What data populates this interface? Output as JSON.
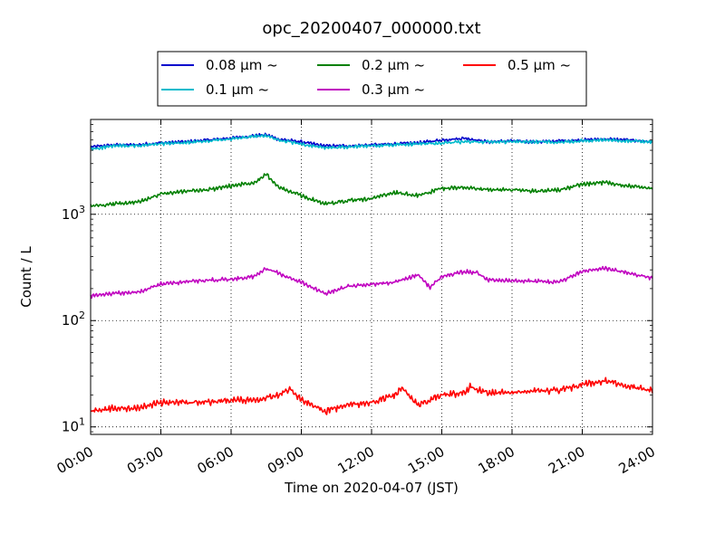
{
  "chart_data": {
    "type": "line",
    "title": "opc_20200407_000000.txt",
    "xlabel": "Time on 2020-04-07 (JST)",
    "ylabel": "Count / L",
    "x_ticks": [
      "00:00",
      "03:00",
      "06:00",
      "09:00",
      "12:00",
      "15:00",
      "18:00",
      "21:00",
      "24:00"
    ],
    "x_unit": "hours",
    "xlim": [
      0,
      24
    ],
    "yscale": "log",
    "ylim": [
      8.5,
      7800
    ],
    "y_ticks": [
      {
        "value": 10,
        "base": "10",
        "exp": "1"
      },
      {
        "value": 100,
        "base": "10",
        "exp": "2"
      },
      {
        "value": 1000,
        "base": "10",
        "exp": "3"
      }
    ],
    "grid": true,
    "legend_position": "top",
    "series": [
      {
        "name": "0.08 μm ~",
        "color": "#0000cc",
        "x": [
          0,
          1,
          2,
          3,
          4,
          5,
          6,
          7,
          7.5,
          8,
          9,
          10,
          11,
          12,
          13,
          14,
          15,
          16,
          17,
          18,
          19,
          20,
          21,
          22,
          23,
          24
        ],
        "y": [
          4300,
          4500,
          4500,
          4700,
          4800,
          5000,
          5200,
          5500,
          5600,
          5100,
          4800,
          4400,
          4400,
          4500,
          4600,
          4700,
          5000,
          5200,
          4800,
          4900,
          4800,
          4900,
          5000,
          5100,
          5000,
          4800
        ],
        "noise": 0.04
      },
      {
        "name": "0.1 μm ~",
        "color": "#00bbcc",
        "x": [
          0,
          1,
          2,
          3,
          4,
          5,
          6,
          7,
          7.5,
          8,
          9,
          10,
          11,
          12,
          13,
          14,
          15,
          16,
          17,
          18,
          19,
          20,
          21,
          22,
          23,
          24
        ],
        "y": [
          4100,
          4400,
          4400,
          4600,
          4700,
          4900,
          5100,
          5400,
          5500,
          5000,
          4600,
          4200,
          4300,
          4400,
          4500,
          4600,
          4700,
          4800,
          4800,
          4800,
          4800,
          4800,
          4900,
          5000,
          4900,
          4800
        ],
        "noise": 0.04
      },
      {
        "name": "0.2 μm ~",
        "color": "#008000",
        "x": [
          0,
          1,
          2,
          3,
          4,
          5,
          6,
          7,
          7.5,
          8,
          9,
          10,
          11,
          12,
          13,
          14,
          15,
          16,
          17,
          18,
          19,
          20,
          21,
          22,
          23,
          24
        ],
        "y": [
          1200,
          1250,
          1300,
          1550,
          1650,
          1700,
          1850,
          2000,
          2400,
          1800,
          1500,
          1250,
          1350,
          1400,
          1600,
          1500,
          1750,
          1800,
          1700,
          1700,
          1650,
          1700,
          1900,
          2000,
          1850,
          1750
        ],
        "noise": 0.05
      },
      {
        "name": "0.3 μm ~",
        "color": "#c000c0",
        "x": [
          0,
          1,
          2,
          3,
          4,
          5,
          6,
          7,
          7.5,
          8,
          9,
          10,
          11,
          12,
          13,
          14,
          14.5,
          15,
          16,
          16.5,
          17,
          18,
          19,
          20,
          21,
          22,
          23,
          24
        ],
        "y": [
          170,
          180,
          185,
          220,
          230,
          240,
          245,
          260,
          310,
          280,
          230,
          180,
          210,
          220,
          230,
          270,
          205,
          260,
          290,
          280,
          240,
          240,
          235,
          230,
          290,
          310,
          280,
          250
        ],
        "noise": 0.05
      },
      {
        "name": "0.5 μm ~",
        "color": "#ff0000",
        "x": [
          0,
          1,
          2,
          3,
          4,
          5,
          6,
          7,
          8,
          8.5,
          9,
          10,
          11,
          12,
          13,
          13.3,
          14,
          15,
          16,
          16.2,
          17,
          18,
          19,
          20,
          21,
          22,
          23,
          24
        ],
        "y": [
          14,
          15,
          15,
          17,
          17,
          17,
          18,
          18,
          20,
          23,
          18,
          14,
          16,
          17,
          20,
          23,
          16,
          20,
          21,
          24,
          21,
          21,
          22,
          22,
          25,
          27,
          24,
          22
        ],
        "noise": 0.08
      }
    ]
  }
}
